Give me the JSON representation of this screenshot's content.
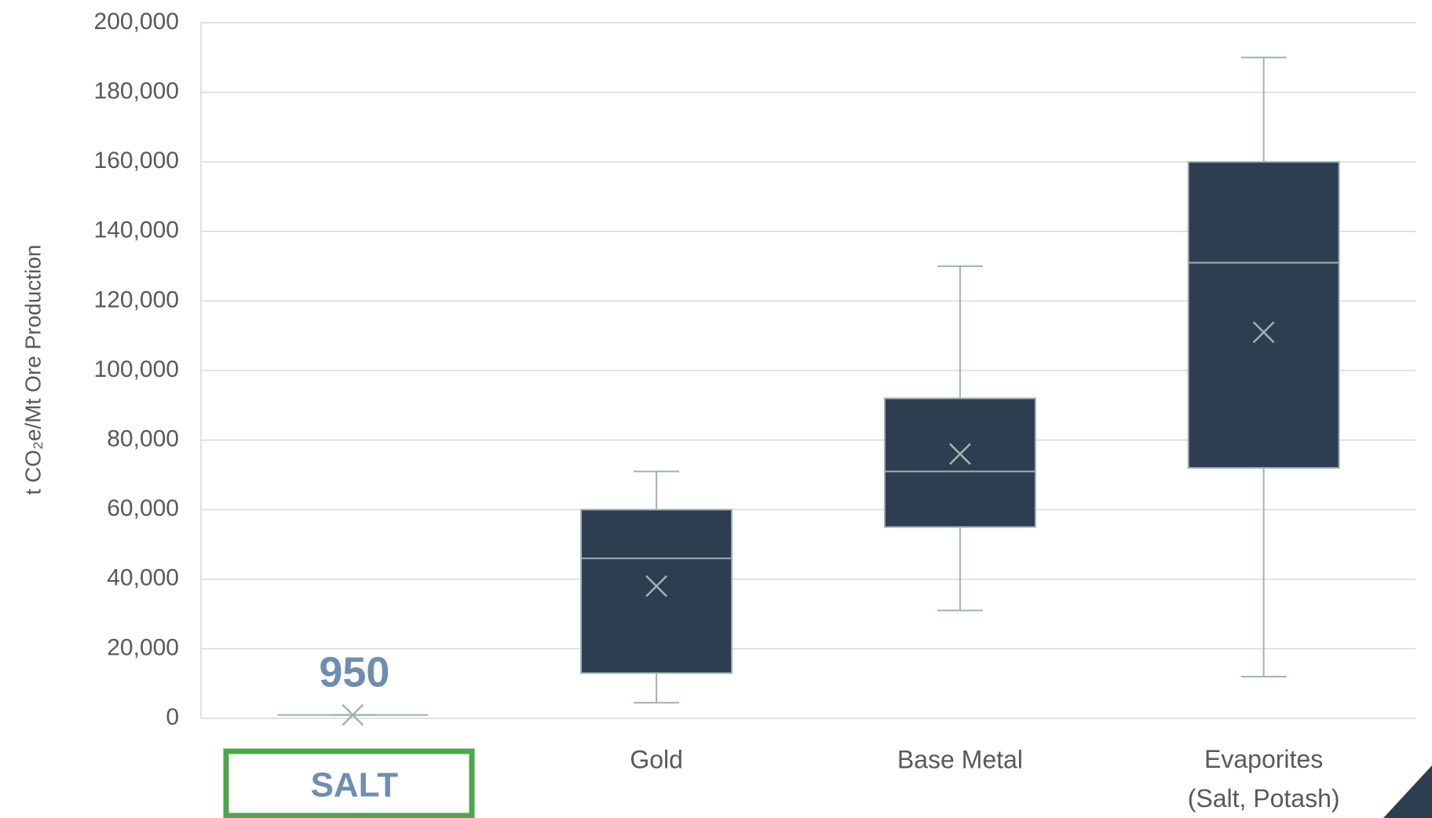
{
  "chart_data": {
    "type": "box",
    "y_label": "t CO₂e/Mt Ore Production",
    "categories": [
      "SALT",
      "Gold",
      "Base Metal",
      "Evaporites\n(Salt, Potash)"
    ],
    "boxes": [
      {
        "min": 950,
        "q1": 950,
        "median": 950,
        "q3": 950,
        "max": 950,
        "mean": 950
      },
      {
        "min": 4500,
        "q1": 13000,
        "median": 46000,
        "q3": 60000,
        "max": 71000,
        "mean": 38000
      },
      {
        "min": 31000,
        "q1": 55000,
        "median": 71000,
        "q3": 92000,
        "max": 130000,
        "mean": 76000
      },
      {
        "min": 12000,
        "q1": 72000,
        "median": 131000,
        "q3": 160000,
        "max": 190000,
        "mean": 111000
      }
    ],
    "color": "#2d3e50",
    "line_color": "#9fb3b3",
    "ylim": [
      0,
      200000
    ],
    "yticks": [
      0,
      {
        "value": 20000,
        "label": "20,000"
      },
      {
        "value": 40000,
        "label": "40,000"
      },
      {
        "value": 60000,
        "label": "60,000"
      },
      {
        "value": 80000,
        "label": "80,000"
      },
      {
        "value": 100000,
        "label": "100,000"
      },
      {
        "value": 120000,
        "label": "120,000"
      },
      {
        "value": 140000,
        "label": "140,000"
      },
      {
        "value": 160000,
        "label": "160,000"
      },
      {
        "value": 180000,
        "label": "180,000"
      },
      {
        "value": 200000,
        "label": "200,000"
      }
    ],
    "grid": true
  }
}
